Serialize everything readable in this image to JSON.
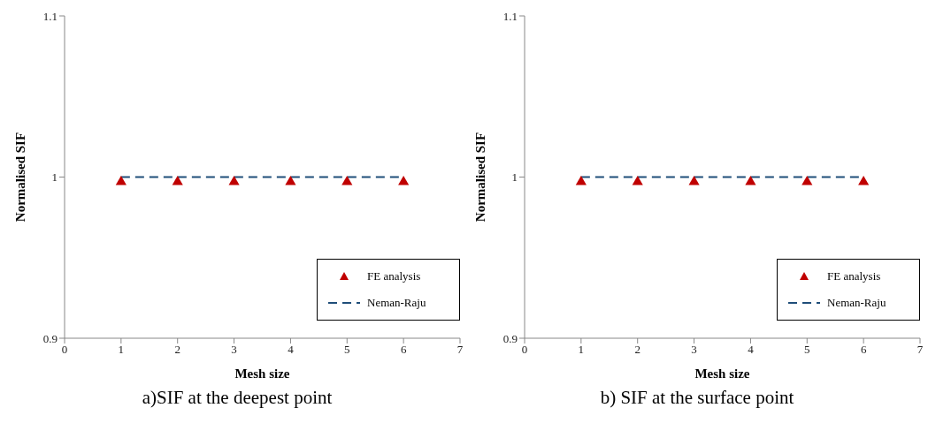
{
  "chart_data": [
    {
      "type": "scatter",
      "title": "a)SIF at the deepest point",
      "xlabel": "Mesh size",
      "ylabel": "Normalised SIF",
      "xlim": [
        0,
        7
      ],
      "xticks": [
        0,
        1,
        2,
        3,
        4,
        5,
        6,
        7
      ],
      "ylim": [
        0.9,
        1.1
      ],
      "yticks": [
        0.9,
        1,
        1.1
      ],
      "grid": false,
      "legend": "bottom right",
      "series": [
        {
          "name": "FE analysis",
          "type": "scatter",
          "marker": "triangle",
          "color": "#c00000",
          "x": [
            1,
            2,
            3,
            4,
            5,
            6
          ],
          "values": [
            0.997,
            0.997,
            0.997,
            0.997,
            0.997,
            0.997
          ]
        },
        {
          "name": "Neman-Raju",
          "type": "line",
          "line_style": "dashed",
          "marker": "none",
          "color": "#1f4e79",
          "x": [
            1,
            2,
            3,
            4,
            5,
            6
          ],
          "values": [
            1,
            1,
            1,
            1,
            1,
            1
          ]
        }
      ]
    },
    {
      "type": "scatter",
      "title": "b) SIF at the surface point",
      "xlabel": "Mesh size",
      "ylabel": "Normalised SIF",
      "xlim": [
        0,
        7
      ],
      "xticks": [
        0,
        1,
        2,
        3,
        4,
        5,
        6,
        7
      ],
      "ylim": [
        0.9,
        1.1
      ],
      "yticks": [
        0.9,
        1,
        1.1
      ],
      "grid": false,
      "legend": "bottom right",
      "series": [
        {
          "name": "FE analysis",
          "type": "scatter",
          "marker": "triangle",
          "color": "#c00000",
          "x": [
            1,
            2,
            3,
            4,
            5,
            6
          ],
          "values": [
            0.997,
            0.997,
            0.997,
            0.997,
            0.997,
            0.997
          ]
        },
        {
          "name": "Neman-Raju",
          "type": "line",
          "line_style": "dashed",
          "marker": "none",
          "color": "#1f4e79",
          "x": [
            1,
            2,
            3,
            4,
            5,
            6
          ],
          "values": [
            1,
            1,
            1,
            1,
            1,
            1
          ]
        }
      ]
    }
  ]
}
